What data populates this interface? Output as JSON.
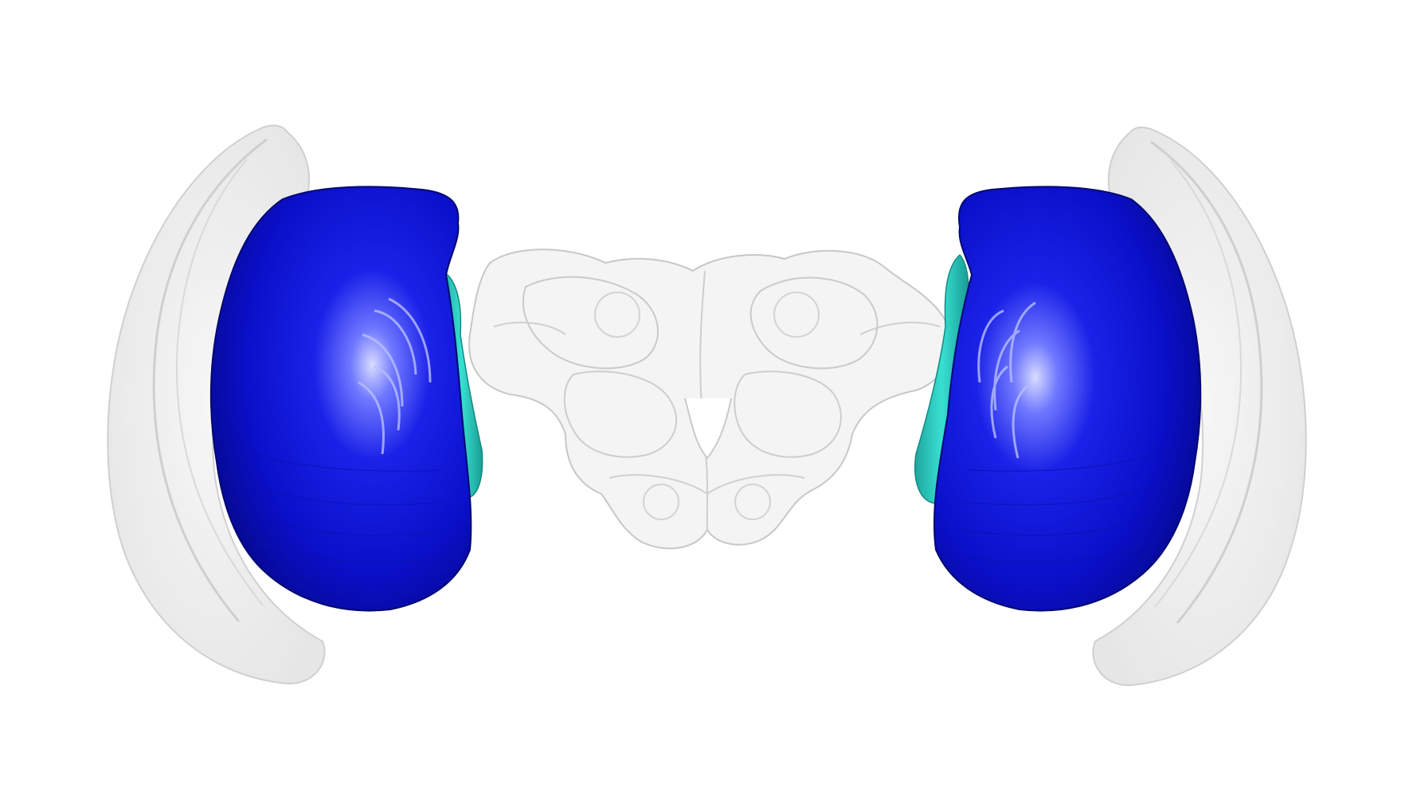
{
  "scene": {
    "background_color": "#ffffff",
    "structures": [
      {
        "name": "outer-shell-left",
        "color": "#e6e6e6",
        "opacity": 0.75
      },
      {
        "name": "outer-shell-right",
        "color": "#e6e6e6",
        "opacity": 0.75
      },
      {
        "name": "blue-lobe-left",
        "color": "#0a0fc8"
      },
      {
        "name": "blue-lobe-right",
        "color": "#0a0fc8"
      },
      {
        "name": "cyan-rim-left",
        "color": "#30d8cc"
      },
      {
        "name": "cyan-rim-right",
        "color": "#30d8cc"
      },
      {
        "name": "central-brain",
        "color": "#9a9a9a",
        "opacity": 0.35
      }
    ]
  }
}
